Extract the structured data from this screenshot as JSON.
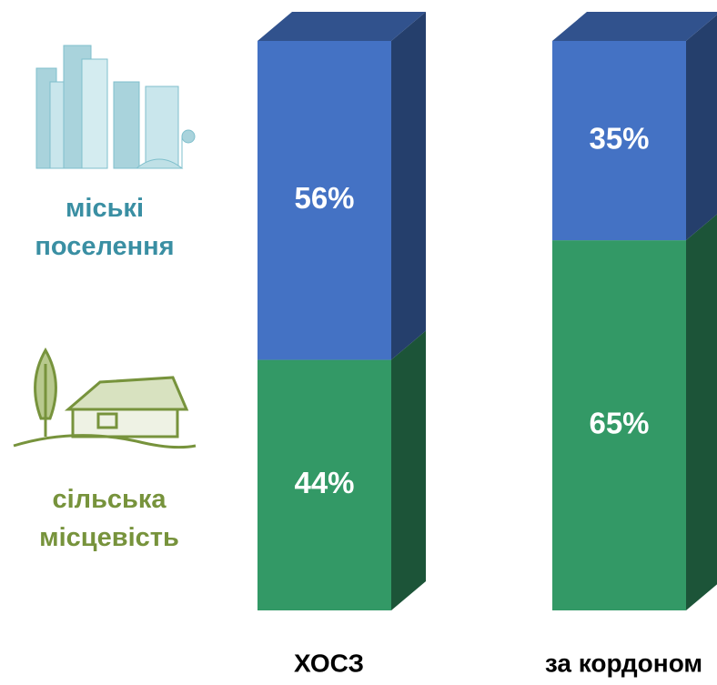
{
  "chart_data": {
    "type": "stacked-bar-3d",
    "categories": [
      "ХОСЗ",
      "за кордоном"
    ],
    "series": [
      {
        "name": "міські поселення",
        "color": "#4472c4",
        "values": [
          56,
          35
        ],
        "value_labels": [
          "56%",
          "35%"
        ]
      },
      {
        "name": "сільська місцевість",
        "color": "#339966",
        "values": [
          44,
          65
        ],
        "value_labels": [
          "44%",
          "65%"
        ]
      }
    ]
  }
}
